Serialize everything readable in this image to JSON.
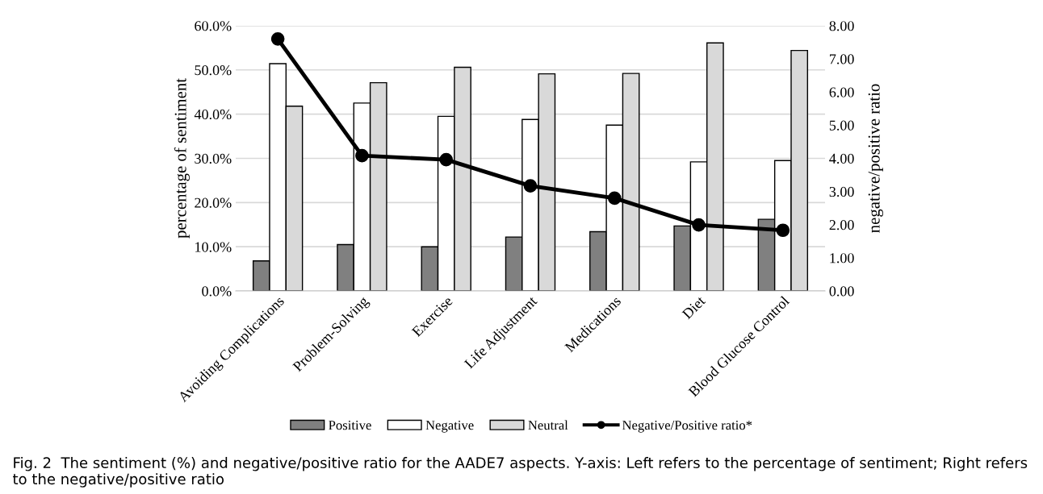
{
  "chart_data": {
    "type": "bar",
    "categories": [
      "Avoiding Complications",
      "Problem-Solving",
      "Exercise",
      "Life Adjustment",
      "Medications",
      "Diet",
      "Blood Glucose Control"
    ],
    "series": [
      {
        "name": "Positive",
        "color": "#808080",
        "values": [
          6.8,
          10.5,
          10.0,
          12.2,
          13.4,
          14.7,
          16.2
        ]
      },
      {
        "name": "Negative",
        "color": "#ffffff",
        "values": [
          51.4,
          42.5,
          39.5,
          38.8,
          37.5,
          29.2,
          29.5
        ]
      },
      {
        "name": "Neutral",
        "color": "#d9d9d9",
        "values": [
          41.8,
          47.1,
          50.6,
          49.1,
          49.2,
          56.1,
          54.4
        ]
      },
      {
        "name": "Negative/Positive ratio*",
        "type": "line",
        "axis": "y2",
        "color": "#000000",
        "marker": "circle",
        "values": [
          7.6,
          4.08,
          3.96,
          3.17,
          2.8,
          1.99,
          1.83
        ]
      }
    ],
    "ylabel": "percentage of sentiment",
    "y2label": "negative/positive ratio",
    "ylim": [
      0,
      60
    ],
    "yticks": [
      {
        "value": 0,
        "label": "0.0%"
      },
      {
        "value": 10,
        "label": "10.0%"
      },
      {
        "value": 20,
        "label": "20.0%"
      },
      {
        "value": 30,
        "label": "30.0%"
      },
      {
        "value": 40,
        "label": "40.0%"
      },
      {
        "value": 50,
        "label": "50.0%"
      },
      {
        "value": 60,
        "label": "60.0%"
      }
    ],
    "y2lim": [
      0,
      8
    ],
    "y2ticks": [
      {
        "value": 0,
        "label": "0.00"
      },
      {
        "value": 1,
        "label": "1.00"
      },
      {
        "value": 2,
        "label": "2.00"
      },
      {
        "value": 3,
        "label": "3.00"
      },
      {
        "value": 4,
        "label": "4.00"
      },
      {
        "value": 5,
        "label": "5.00"
      },
      {
        "value": 6,
        "label": "6.00"
      },
      {
        "value": 7,
        "label": "7.00"
      },
      {
        "value": 8,
        "label": "8.00"
      }
    ],
    "grid": "y",
    "legend": "bottom",
    "annotations": [
      "Fig. 2  The sentiment (%) and negative/positive ratio for the AADE7 aspects. Y-axis: Left refers to the percentage of sentiment; Right refers to the negative/positive ratio"
    ]
  }
}
